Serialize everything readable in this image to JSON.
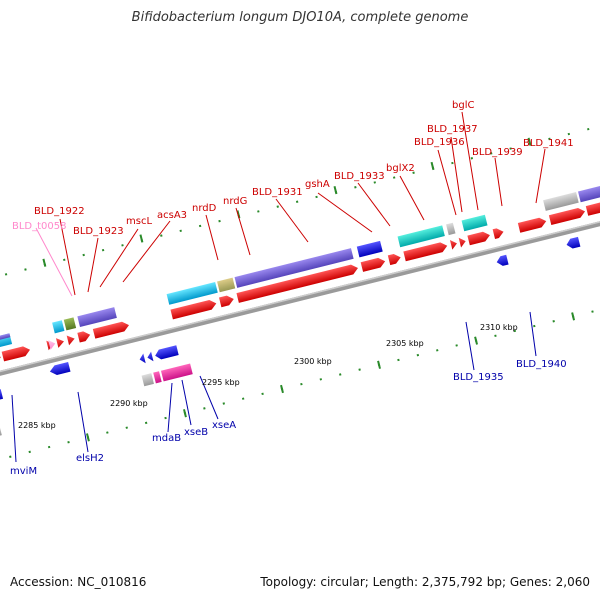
{
  "title": "Bifidobacterium longum DJO10A, complete genome",
  "footer": {
    "accession": "Accession: NC_010816",
    "summary": "Topology: circular; Length: 2,375,792 bp; Genes: 2,060"
  },
  "colors": {
    "forward_label": "#cc0000",
    "reverse_label": "#0000aa",
    "trna_label": "#ff88cc",
    "backbone": "#999999",
    "cds_forward": "#ff0000",
    "cds_reverse": "#0000ee"
  },
  "ticks": [
    {
      "label": "2285 kbp"
    },
    {
      "label": "2290 kbp"
    },
    {
      "label": "2295 kbp"
    },
    {
      "label": "2300 kbp"
    },
    {
      "label": "2305 kbp"
    },
    {
      "label": "2310 kbp"
    }
  ],
  "forward_labels": [
    "BLD_t0058",
    "BLD_1922",
    "BLD_1923",
    "mscL",
    "acsA3",
    "nrdD",
    "nrdG",
    "BLD_1931",
    "gshA",
    "BLD_1933",
    "bglX2",
    "BLD_1936",
    "BLD_1937",
    "bglC",
    "BLD_1939",
    "BLD_1941"
  ],
  "reverse_labels": [
    "mviM",
    "elsH2",
    "mdaB",
    "xseB",
    "xseA",
    "BLD_1935",
    "BLD_1940"
  ]
}
